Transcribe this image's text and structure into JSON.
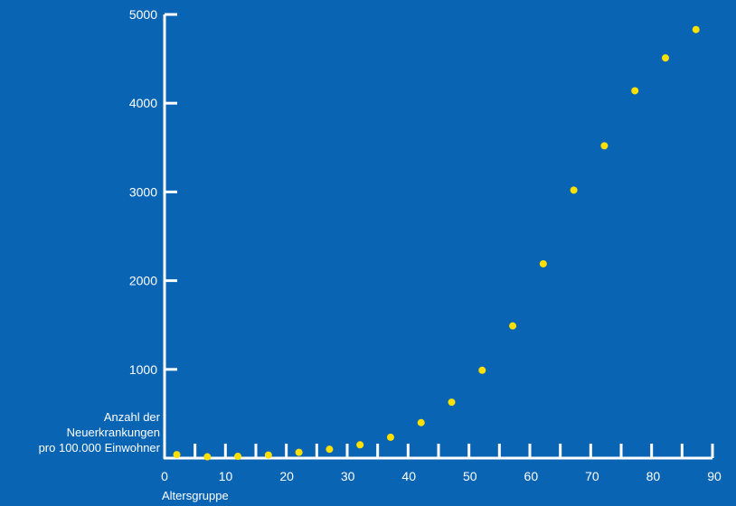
{
  "chart_data": {
    "type": "scatter",
    "xlabel": "Altersgruppe",
    "ylabel_lines": [
      "Anzahl der",
      "Neuerkrankungen",
      "pro 100.000 Einwohner"
    ],
    "x_ticks": [
      0,
      10,
      20,
      30,
      40,
      50,
      60,
      70,
      80,
      90
    ],
    "y_ticks": [
      1000,
      2000,
      3000,
      4000,
      5000
    ],
    "xlim": [
      0,
      90
    ],
    "ylim": [
      0,
      5000
    ],
    "grid": false,
    "colors": {
      "background": "#0a64b4",
      "axis": "#ffffff",
      "points": "#ffe000"
    },
    "points": [
      {
        "x": 2,
        "y": 40
      },
      {
        "x": 7,
        "y": 15
      },
      {
        "x": 12,
        "y": 20
      },
      {
        "x": 17,
        "y": 35
      },
      {
        "x": 22,
        "y": 65
      },
      {
        "x": 27,
        "y": 100
      },
      {
        "x": 32,
        "y": 150
      },
      {
        "x": 37,
        "y": 235
      },
      {
        "x": 42,
        "y": 400
      },
      {
        "x": 47,
        "y": 630
      },
      {
        "x": 52,
        "y": 990
      },
      {
        "x": 57,
        "y": 1490
      },
      {
        "x": 62,
        "y": 2190
      },
      {
        "x": 67,
        "y": 3020
      },
      {
        "x": 72,
        "y": 3520
      },
      {
        "x": 77,
        "y": 4140
      },
      {
        "x": 82,
        "y": 4510
      },
      {
        "x": 87,
        "y": 4830
      }
    ]
  }
}
